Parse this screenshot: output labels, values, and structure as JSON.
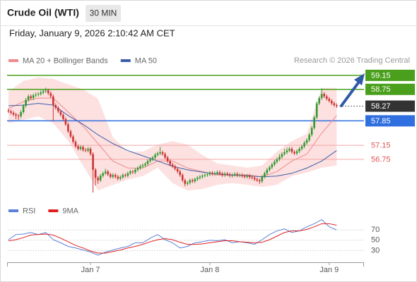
{
  "header": {
    "title": "Crude Oil (WTI)",
    "interval": "30 MIN",
    "datetime": "Friday, January 9, 2026 2:10:42 AM CET"
  },
  "chart_data": [
    {
      "type": "candlestick",
      "source": "Research © 2026 Trading Central",
      "xlim": [
        0,
        143
      ],
      "ylim": [
        55.62,
        59.39
      ],
      "up_color": "#2f9a2f",
      "down_color": "#cc3333",
      "open": [
        58.15,
        58.12,
        58.08,
        58.03,
        58.0,
        57.98,
        58.1,
        58.28,
        58.45,
        58.55,
        58.5,
        58.58,
        58.6,
        58.62,
        58.66,
        58.7,
        58.72,
        58.64,
        58.55,
        58.3,
        58.22,
        58.12,
        58.02,
        57.9,
        57.75,
        57.55,
        57.4,
        57.25,
        57.12,
        57.05,
        57.1,
        57.02,
        57.0,
        57.05,
        56.9,
        56.45,
        56.22,
        56.15,
        56.28,
        56.35,
        56.4,
        56.32,
        56.25,
        56.3,
        56.25,
        56.2,
        56.24,
        56.3,
        56.28,
        56.35,
        56.4,
        56.38,
        56.45,
        56.5,
        56.55,
        56.58,
        56.62,
        56.7,
        56.75,
        56.8,
        56.88,
        56.92,
        56.95,
        56.9,
        56.8,
        56.7,
        56.6,
        56.55,
        56.48,
        56.4,
        56.3,
        56.15,
        56.05,
        56.08,
        56.15,
        56.12,
        56.18,
        56.22,
        56.25,
        56.28,
        56.3,
        56.32,
        56.36,
        56.33,
        56.35,
        56.38,
        56.34,
        56.3,
        56.34,
        56.32,
        56.28,
        56.3,
        56.33,
        56.29,
        56.3,
        56.27,
        56.25,
        56.28,
        56.24,
        56.22,
        56.18,
        56.15,
        56.12,
        56.25,
        56.35,
        56.45,
        56.52,
        56.6,
        56.68,
        56.75,
        56.82,
        56.9,
        56.95,
        57.0,
        57.05,
        56.96,
        56.92,
        56.98,
        57.05,
        57.12,
        57.22,
        57.3,
        57.45,
        57.65,
        57.95,
        58.35,
        58.5,
        58.62,
        58.55,
        58.48,
        58.42,
        58.35,
        58.3
      ],
      "high": [
        58.2,
        58.17,
        58.13,
        58.08,
        58.05,
        58.15,
        58.33,
        58.5,
        58.6,
        58.6,
        58.63,
        58.66,
        58.67,
        58.72,
        58.76,
        58.8,
        58.77,
        58.69,
        58.6,
        58.35,
        58.27,
        58.17,
        58.07,
        57.95,
        57.8,
        57.6,
        57.45,
        57.3,
        57.17,
        57.15,
        57.15,
        57.07,
        57.1,
        57.1,
        56.95,
        56.5,
        56.27,
        56.33,
        56.4,
        56.48,
        56.45,
        56.37,
        56.35,
        56.35,
        56.3,
        56.29,
        56.35,
        56.35,
        56.4,
        56.45,
        56.45,
        56.5,
        56.55,
        56.6,
        56.63,
        56.67,
        56.75,
        56.8,
        56.85,
        56.93,
        56.97,
        57.1,
        57.0,
        56.95,
        56.85,
        56.75,
        56.65,
        56.6,
        56.53,
        56.45,
        56.35,
        56.2,
        56.13,
        56.2,
        56.2,
        56.23,
        56.27,
        56.3,
        56.33,
        56.35,
        56.37,
        56.41,
        56.41,
        56.4,
        56.43,
        56.43,
        56.39,
        56.39,
        56.39,
        56.37,
        56.35,
        56.38,
        56.38,
        56.35,
        56.35,
        56.32,
        56.33,
        56.33,
        56.29,
        56.27,
        56.23,
        56.2,
        56.3,
        56.4,
        56.5,
        56.57,
        56.65,
        56.73,
        56.8,
        56.9,
        56.95,
        57.05,
        57.08,
        57.1,
        57.1,
        57.01,
        57.03,
        57.1,
        57.17,
        57.27,
        57.35,
        57.5,
        57.7,
        58.0,
        58.4,
        58.55,
        58.78,
        58.67,
        58.6,
        58.53,
        58.47,
        58.4,
        58.35
      ],
      "low": [
        58.07,
        58.03,
        57.98,
        57.9,
        57.88,
        57.93,
        58.05,
        58.23,
        58.4,
        58.45,
        58.45,
        58.53,
        58.55,
        58.57,
        58.61,
        58.65,
        58.59,
        58.5,
        57.85,
        58.17,
        58.07,
        57.97,
        57.85,
        57.7,
        57.5,
        57.35,
        57.2,
        57.07,
        57.0,
        57.0,
        56.97,
        56.95,
        56.95,
        56.85,
        55.8,
        56.0,
        56.05,
        56.1,
        56.23,
        56.3,
        56.27,
        56.2,
        56.2,
        56.2,
        56.15,
        56.15,
        56.19,
        56.23,
        56.23,
        56.3,
        56.33,
        56.33,
        56.4,
        56.45,
        56.5,
        56.53,
        56.57,
        56.65,
        56.7,
        56.75,
        56.83,
        56.87,
        56.85,
        56.75,
        56.65,
        56.55,
        56.5,
        56.43,
        56.35,
        56.25,
        56.1,
        55.98,
        56.0,
        56.03,
        56.07,
        56.07,
        56.13,
        56.17,
        56.2,
        56.23,
        56.25,
        56.27,
        56.28,
        56.28,
        56.3,
        56.29,
        56.25,
        56.25,
        56.27,
        56.23,
        56.23,
        56.25,
        56.24,
        56.24,
        56.22,
        56.2,
        56.2,
        56.19,
        56.17,
        56.13,
        56.1,
        56.05,
        56.07,
        56.2,
        56.3,
        56.4,
        56.47,
        56.55,
        56.63,
        56.7,
        56.77,
        56.85,
        56.9,
        56.95,
        56.91,
        56.87,
        56.87,
        56.93,
        57.0,
        57.07,
        57.17,
        57.25,
        57.4,
        57.6,
        57.9,
        58.3,
        58.45,
        58.5,
        58.43,
        58.37,
        58.3,
        58.25,
        58.22
      ],
      "close": [
        58.12,
        58.08,
        58.03,
        58.0,
        57.98,
        58.1,
        58.28,
        58.45,
        58.55,
        58.5,
        58.58,
        58.6,
        58.62,
        58.66,
        58.7,
        58.72,
        58.64,
        58.55,
        58.3,
        58.22,
        58.12,
        58.02,
        57.9,
        57.75,
        57.55,
        57.4,
        57.25,
        57.12,
        57.05,
        57.1,
        57.02,
        57.0,
        57.05,
        56.9,
        56.45,
        56.22,
        56.15,
        56.28,
        56.35,
        56.4,
        56.32,
        56.25,
        56.3,
        56.25,
        56.2,
        56.24,
        56.3,
        56.28,
        56.35,
        56.4,
        56.38,
        56.45,
        56.5,
        56.55,
        56.58,
        56.62,
        56.7,
        56.75,
        56.8,
        56.88,
        56.92,
        56.95,
        56.9,
        56.8,
        56.7,
        56.6,
        56.55,
        56.48,
        56.4,
        56.3,
        56.15,
        56.05,
        56.08,
        56.15,
        56.12,
        56.18,
        56.22,
        56.25,
        56.28,
        56.3,
        56.32,
        56.36,
        56.33,
        56.35,
        56.38,
        56.34,
        56.3,
        56.34,
        56.32,
        56.28,
        56.3,
        56.33,
        56.29,
        56.3,
        56.27,
        56.25,
        56.28,
        56.24,
        56.22,
        56.18,
        56.15,
        56.12,
        56.25,
        56.35,
        56.45,
        56.52,
        56.6,
        56.68,
        56.75,
        56.82,
        56.9,
        56.95,
        57.0,
        57.05,
        56.96,
        56.92,
        56.98,
        57.05,
        57.12,
        57.22,
        57.3,
        57.45,
        57.65,
        57.95,
        58.35,
        58.5,
        58.62,
        58.55,
        58.48,
        58.42,
        58.35,
        58.3,
        58.27
      ],
      "series": [
        {
          "name": "MA 20 + Bollinger Bands",
          "color": "#f08a8a",
          "band_color": "#fde0e0",
          "x": [
            0,
            6,
            12,
            18,
            24,
            30,
            36,
            42,
            48,
            54,
            60,
            66,
            72,
            78,
            84,
            90,
            96,
            102,
            108,
            114,
            120,
            126,
            132
          ],
          "values": [
            58.2,
            58.4,
            58.5,
            58.5,
            58.1,
            57.7,
            57.2,
            56.7,
            56.5,
            56.5,
            56.7,
            56.7,
            56.5,
            56.4,
            56.3,
            56.3,
            56.3,
            56.25,
            56.4,
            56.7,
            56.9,
            57.5,
            58.0
          ],
          "upper": [
            58.69,
            58.99,
            59.09,
            59.05,
            58.89,
            58.75,
            58.48,
            57.38,
            56.97,
            56.97,
            57.17,
            57.27,
            57.17,
            56.87,
            56.63,
            56.57,
            56.51,
            56.57,
            56.97,
            57.27,
            57.48,
            58.79,
            58.79
          ],
          "lower": [
            57.78,
            57.88,
            57.98,
            57.78,
            57.28,
            56.57,
            55.86,
            56.02,
            56.17,
            56.27,
            56.51,
            56.07,
            55.86,
            55.9,
            56.02,
            56.07,
            56.02,
            55.96,
            56.02,
            56.27,
            56.37,
            56.51,
            56.57
          ]
        },
        {
          "name": "MA 50",
          "color": "#3a5fa8",
          "x": [
            0,
            6,
            12,
            18,
            24,
            30,
            36,
            42,
            48,
            54,
            60,
            66,
            72,
            78,
            84,
            90,
            96,
            102,
            108,
            114,
            120,
            126,
            132
          ],
          "values": [
            58.28,
            58.3,
            58.35,
            58.3,
            58.0,
            57.75,
            57.45,
            57.2,
            57.0,
            56.85,
            56.7,
            56.55,
            56.45,
            56.38,
            56.33,
            56.3,
            56.28,
            56.25,
            56.27,
            56.35,
            56.5,
            56.7,
            57.0
          ]
        }
      ],
      "levels": [
        {
          "value": 59.15,
          "color": "#4aa01c",
          "boxed": true,
          "style": "solid"
        },
        {
          "value": 58.75,
          "color": "#4aa01c",
          "boxed": true,
          "style": "solid"
        },
        {
          "value": 58.27,
          "color": "#333333",
          "boxed": true,
          "style": "dotted"
        },
        {
          "value": 57.85,
          "color": "#2f6fe0",
          "boxed": true,
          "style": "solid"
        },
        {
          "value": 57.15,
          "color": "#e25555",
          "boxed": false,
          "style": "solid"
        },
        {
          "value": 56.75,
          "color": "#e25555",
          "boxed": false,
          "style": "solid"
        }
      ]
    },
    {
      "type": "line",
      "xlim": [
        0,
        143
      ],
      "ylim": [
        10,
        92
      ],
      "yticks": [
        30,
        50,
        70
      ],
      "grid": true,
      "xticks": [
        {
          "value": 33,
          "label": "Jan 7"
        },
        {
          "value": 81,
          "label": "Jan 8"
        },
        {
          "value": 129,
          "label": "Jan 9"
        }
      ],
      "series": [
        {
          "name": "RSI",
          "color": "#5b80d8",
          "x": [
            0,
            3,
            6,
            9,
            12,
            15,
            18,
            21,
            24,
            27,
            30,
            33,
            36,
            39,
            42,
            45,
            48,
            51,
            54,
            57,
            60,
            63,
            66,
            69,
            72,
            75,
            78,
            81,
            84,
            87,
            90,
            93,
            96,
            99,
            102,
            105,
            108,
            111,
            114,
            117,
            120,
            123,
            126,
            129,
            132
          ],
          "values": [
            51,
            61,
            62,
            65,
            61,
            65,
            51,
            45,
            38,
            35,
            31,
            27,
            21,
            27,
            31,
            35,
            38,
            45,
            45,
            54,
            61,
            51,
            45,
            35,
            38,
            45,
            47,
            50,
            49,
            51,
            45,
            47,
            45,
            42,
            51,
            61,
            68,
            72,
            65,
            68,
            76,
            82,
            90,
            76,
            70
          ]
        },
        {
          "name": "9MA",
          "color": "#e02020",
          "x": [
            0,
            3,
            6,
            9,
            12,
            15,
            18,
            21,
            24,
            27,
            30,
            33,
            36,
            39,
            42,
            45,
            48,
            51,
            54,
            57,
            60,
            63,
            66,
            69,
            72,
            75,
            78,
            81,
            84,
            87,
            90,
            93,
            96,
            99,
            102,
            105,
            108,
            111,
            114,
            117,
            120,
            123,
            126,
            129,
            132
          ],
          "values": [
            49,
            51,
            55,
            60,
            61,
            62,
            60,
            54,
            47,
            40,
            35,
            29,
            25,
            25,
            28,
            31,
            35,
            38,
            42,
            47,
            51,
            53,
            51,
            46,
            42,
            42,
            43,
            45,
            47,
            49,
            49,
            47,
            46,
            45,
            46,
            51,
            58,
            65,
            68,
            68,
            71,
            76,
            82,
            82,
            79
          ]
        }
      ]
    }
  ]
}
